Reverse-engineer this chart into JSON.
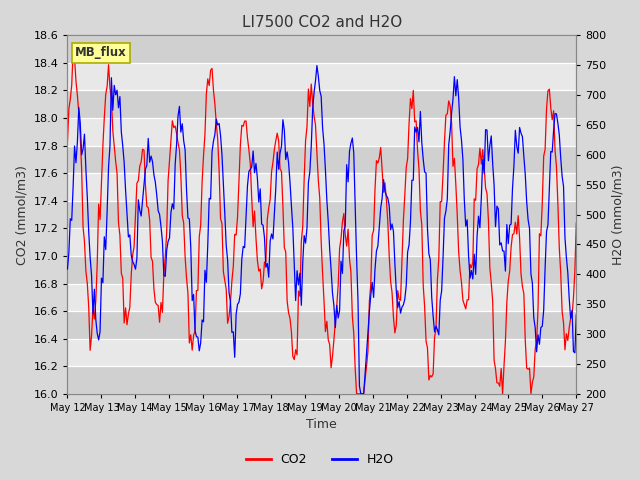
{
  "title": "LI7500 CO2 and H2O",
  "xlabel": "Time",
  "ylabel_left": "CO2 (mmol/m3)",
  "ylabel_right": "H2O (mmol/m3)",
  "ylim_left": [
    16.0,
    18.6
  ],
  "ylim_right": [
    200,
    800
  ],
  "yticks_left": [
    16.0,
    16.2,
    16.4,
    16.6,
    16.8,
    17.0,
    17.2,
    17.4,
    17.6,
    17.8,
    18.0,
    18.2,
    18.4,
    18.6
  ],
  "yticks_right": [
    200,
    250,
    300,
    350,
    400,
    450,
    500,
    550,
    600,
    650,
    700,
    750,
    800
  ],
  "xtick_labels": [
    "May 12",
    "May 13",
    "May 14",
    "May 15",
    "May 16",
    "May 17",
    "May 18",
    "May 19",
    "May 20",
    "May 21",
    "May 22",
    "May 23",
    "May 24",
    "May 25",
    "May 26",
    "May 27"
  ],
  "label_box_text": "MB_flux",
  "label_box_bg": "#FFFF99",
  "label_box_border": "#AAAA00",
  "bg_color": "#D8D8D8",
  "band_color_light": "#E8E8E8",
  "band_color_dark": "#D0D0D0",
  "grid_color": "#FFFFFF",
  "co2_color": "#FF0000",
  "h2o_color": "#0000FF",
  "legend_co2": "CO2",
  "legend_h2o": "H2O",
  "title_fontsize": 11,
  "axis_label_fontsize": 9,
  "tick_fontsize": 8
}
